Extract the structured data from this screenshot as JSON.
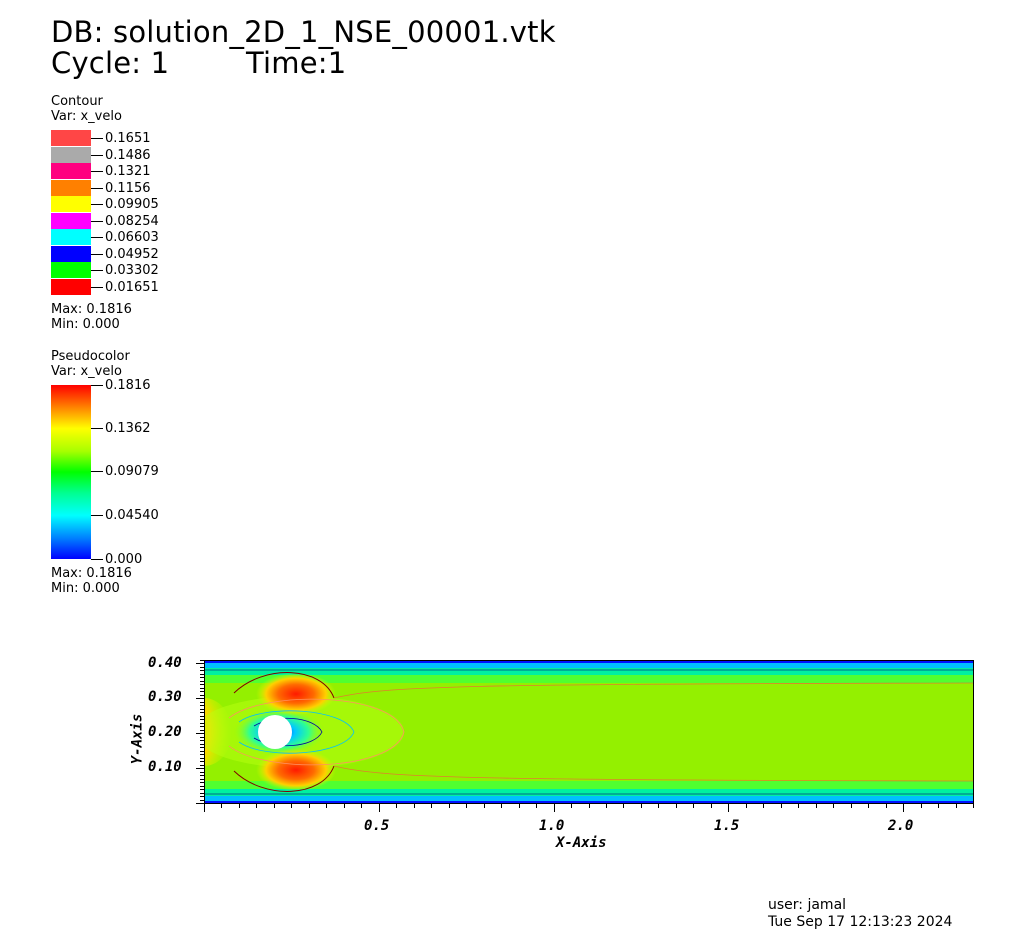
{
  "header": {
    "db_line": "DB: solution_2D_1_NSE_00001.vtk",
    "cycle_label": "Cycle: 1",
    "time_label": "Time:1"
  },
  "contour_legend": {
    "title": "Contour",
    "var": "Var: x_velo",
    "levels": [
      {
        "label": "0.1651",
        "color": "#ff4646"
      },
      {
        "label": "0.1486",
        "color": "#aaaaaa"
      },
      {
        "label": "0.1321",
        "color": "#ff0080"
      },
      {
        "label": "0.1156",
        "color": "#ff8000"
      },
      {
        "label": "0.09905",
        "color": "#ffff00"
      },
      {
        "label": "0.08254",
        "color": "#ff00ff"
      },
      {
        "label": "0.06603",
        "color": "#00ffff"
      },
      {
        "label": "0.04952",
        "color": "#0000ff"
      },
      {
        "label": "0.03302",
        "color": "#00ff00"
      },
      {
        "label": "0.01651",
        "color": "#ff0000"
      }
    ],
    "max": "Max:  0.1816",
    "min": "Min:  0.000"
  },
  "pseudocolor_legend": {
    "title": "Pseudocolor",
    "var": "Var: x_velo",
    "ticks": [
      "0.1816",
      "0.1362",
      "0.09079",
      "0.04540",
      "0.000"
    ],
    "max": "Max:  0.1816",
    "min": "Min:  0.000"
  },
  "plot": {
    "y_axis_title": "Y-Axis",
    "x_axis_title": "X-Axis",
    "y_ticks": [
      "0.40",
      "0.30",
      "0.20",
      "0.10"
    ],
    "x_ticks": [
      "0.5",
      "1.0",
      "1.5",
      "2.0"
    ]
  },
  "footer": {
    "user": "user: jamal",
    "timestamp": "Tue Sep 17 12:13:23 2024"
  }
}
